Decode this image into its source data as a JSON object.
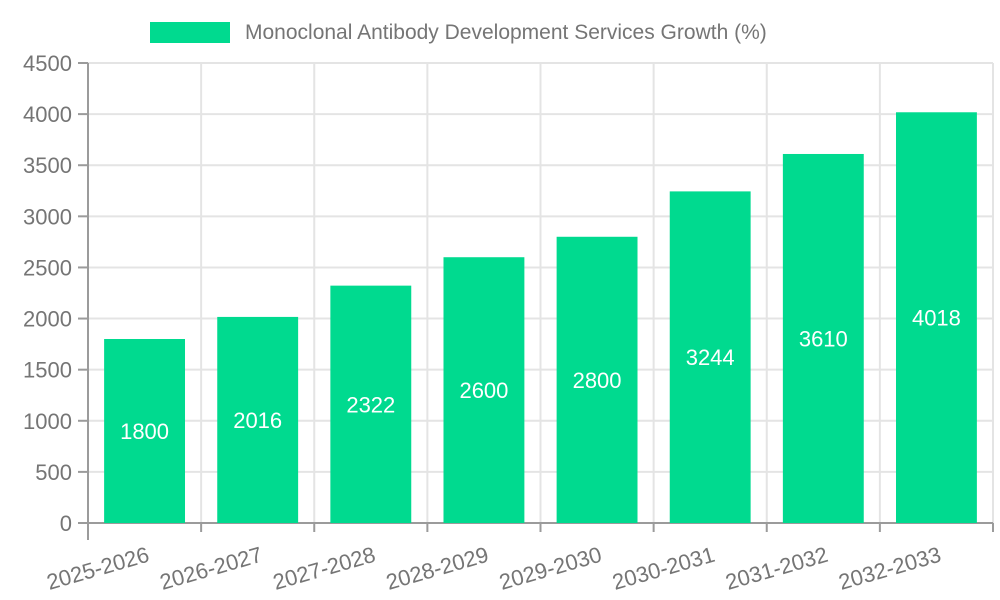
{
  "legend": {
    "label": "Monoclonal Antibody Development Services Growth (%)",
    "swatch_color": "#00da8f"
  },
  "chart_data": {
    "type": "bar",
    "title": "Monoclonal Antibody Development Services Growth (%)",
    "categories": [
      "2025-2026",
      "2026-2027",
      "2027-2028",
      "2028-2029",
      "2029-2030",
      "2030-2031",
      "2031-2032",
      "2032-2033"
    ],
    "values": [
      1800,
      2016,
      2322,
      2600,
      2800,
      3244,
      3610,
      4018
    ],
    "xlabel": "",
    "ylabel": "",
    "ylim": [
      0,
      4500
    ],
    "yticks": [
      0,
      500,
      1000,
      1500,
      2000,
      2500,
      3000,
      3500,
      4000,
      4500
    ],
    "grid": true,
    "legend_position": "top-center",
    "x_label_rotation_deg": -16,
    "bar_color": "#00da8f",
    "value_label_color": "#ffffff",
    "axis_color": "#9b9b9b",
    "grid_color": "#e4e4e4",
    "tick_label_color": "#757575",
    "title_color": "#757575"
  }
}
